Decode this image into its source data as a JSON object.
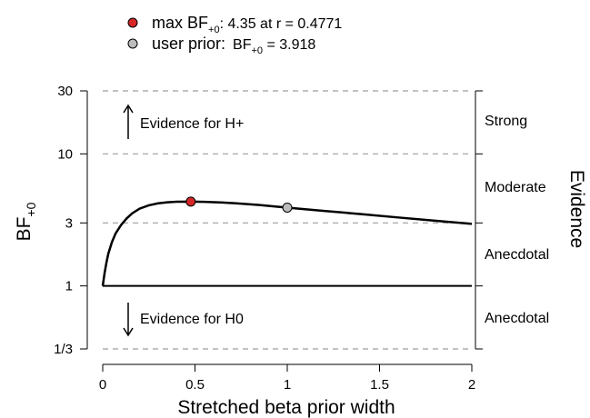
{
  "chart_data": {
    "type": "line",
    "xlabel": "Stretched beta prior width",
    "ylabel": "BF",
    "ylabel_sub": "+0",
    "right_label": "Evidence",
    "x_ticks": [
      "0",
      "0.5",
      "1",
      "1.5",
      "2"
    ],
    "x_tick_values": [
      0,
      0.5,
      1,
      1.5,
      2
    ],
    "y_ticks": [
      "1/3",
      "1",
      "3",
      "10",
      "30"
    ],
    "y_tick_values": [
      0.3333,
      1,
      3,
      10,
      30
    ],
    "xlim": [
      0,
      2
    ],
    "ylim": [
      0.3333,
      30
    ],
    "y_scale": "log",
    "evidence_labels": [
      "Strong",
      "Moderate",
      "Anecdotal",
      "Anecdotal"
    ],
    "annotations": {
      "up": "Evidence for H+",
      "down": "Evidence for H0"
    },
    "legend": {
      "max_label": "max BF",
      "max_sub": "+0",
      "max_value_text": ": 4.35 at r = 0.4771",
      "user_label": "user prior:",
      "user_bf": "BF",
      "user_sub": "+0",
      "user_value_text": " = 3.918"
    },
    "series": [
      {
        "x": [
          0.0,
          0.01,
          0.02,
          0.03,
          0.05,
          0.07,
          0.1,
          0.13,
          0.16,
          0.2,
          0.25,
          0.3,
          0.35,
          0.4,
          0.4771,
          0.55,
          0.65,
          0.75,
          0.85,
          1.0,
          1.2,
          1.4,
          1.6,
          1.8,
          2.0
        ],
        "y": [
          1.0,
          1.25,
          1.5,
          1.75,
          2.15,
          2.5,
          2.9,
          3.25,
          3.55,
          3.85,
          4.08,
          4.22,
          4.3,
          4.34,
          4.35,
          4.33,
          4.28,
          4.2,
          4.1,
          3.918,
          3.7,
          3.5,
          3.3,
          3.12,
          2.95
        ]
      }
    ],
    "points": [
      {
        "name": "max",
        "x": 0.4771,
        "y": 4.35,
        "color": "#d62728"
      },
      {
        "name": "user",
        "x": 1.0,
        "y": 3.918,
        "color": "#bdbdbd"
      }
    ]
  }
}
